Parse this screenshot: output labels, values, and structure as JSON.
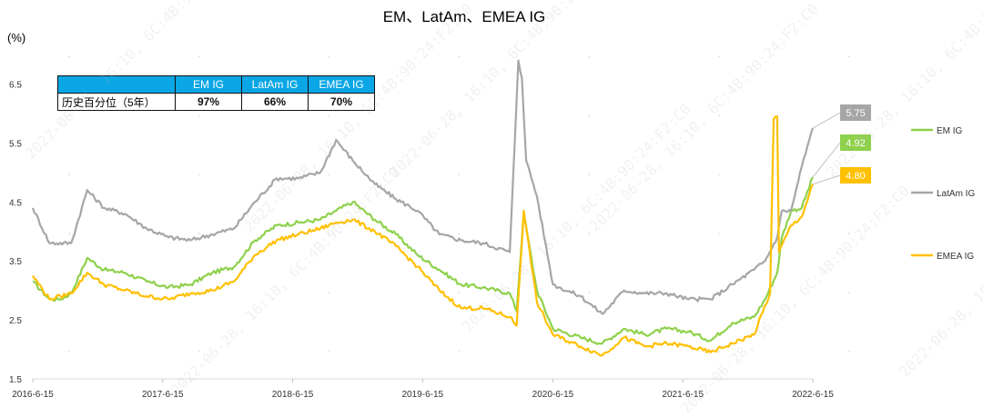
{
  "chart_data": {
    "type": "line",
    "title": "EM、LatAm、EMEA IG",
    "ylabel": "(%)",
    "ylim": [
      1.5,
      7.0
    ],
    "yticks": [
      1.5,
      2.5,
      3.5,
      4.5,
      5.5,
      6.5
    ],
    "xlim": [
      "2016-06-15",
      "2022-06-15"
    ],
    "xticks": [
      "2016-6-15",
      "2017-6-15",
      "2018-6-15",
      "2019-6-15",
      "2020-6-15",
      "2021-6-15",
      "2022-6-15"
    ],
    "grid": "dotted",
    "legend": "right",
    "series": [
      {
        "name": "EM IG",
        "color": "#8ed14b",
        "end_label": "4.92",
        "x": [
          "2016-06-15",
          "2016-08-01",
          "2016-09-01",
          "2016-10-01",
          "2016-11-15",
          "2017-01-01",
          "2017-03-01",
          "2017-05-01",
          "2017-07-01",
          "2017-09-01",
          "2017-11-01",
          "2018-01-01",
          "2018-03-01",
          "2018-05-01",
          "2018-07-01",
          "2018-09-01",
          "2018-10-15",
          "2018-12-01",
          "2019-02-01",
          "2019-04-01",
          "2019-06-01",
          "2019-08-01",
          "2019-10-01",
          "2019-12-01",
          "2020-02-15",
          "2020-03-05",
          "2020-03-25",
          "2020-05-01",
          "2020-06-15",
          "2020-09-01",
          "2020-11-01",
          "2021-01-01",
          "2021-03-01",
          "2021-05-01",
          "2021-07-01",
          "2021-09-01",
          "2021-11-01",
          "2022-01-01",
          "2022-02-01",
          "2022-03-07",
          "2022-03-20",
          "2022-04-15",
          "2022-05-15",
          "2022-06-15"
        ],
        "y": [
          3.15,
          2.85,
          2.85,
          2.95,
          3.55,
          3.35,
          3.3,
          3.15,
          3.05,
          3.1,
          3.3,
          3.4,
          3.85,
          4.1,
          4.15,
          4.2,
          4.35,
          4.5,
          4.2,
          3.95,
          3.6,
          3.35,
          3.1,
          3.05,
          2.95,
          2.65,
          4.3,
          3.0,
          2.35,
          2.2,
          2.1,
          2.35,
          2.25,
          2.35,
          2.3,
          2.15,
          2.45,
          2.55,
          2.85,
          3.3,
          3.9,
          4.35,
          4.4,
          4.92
        ]
      },
      {
        "name": "LatAm IG",
        "color": "#a6a6a6",
        "end_label": "5.75",
        "x": [
          "2016-06-15",
          "2016-08-01",
          "2016-10-01",
          "2016-11-15",
          "2017-01-01",
          "2017-03-01",
          "2017-05-01",
          "2017-07-01",
          "2017-09-01",
          "2017-11-01",
          "2018-01-01",
          "2018-03-01",
          "2018-05-01",
          "2018-07-01",
          "2018-09-01",
          "2018-10-15",
          "2018-12-01",
          "2019-02-01",
          "2019-04-01",
          "2019-06-01",
          "2019-08-01",
          "2019-10-01",
          "2019-12-01",
          "2020-02-15",
          "2020-03-10",
          "2020-03-20",
          "2020-04-01",
          "2020-05-01",
          "2020-06-15",
          "2020-09-01",
          "2020-11-01",
          "2021-01-01",
          "2021-03-01",
          "2021-05-01",
          "2021-07-01",
          "2021-09-01",
          "2021-11-01",
          "2022-01-01",
          "2022-02-01",
          "2022-03-07",
          "2022-03-20",
          "2022-04-15",
          "2022-05-15",
          "2022-06-15"
        ],
        "y": [
          4.4,
          3.8,
          3.8,
          4.7,
          4.4,
          4.3,
          4.05,
          3.9,
          3.85,
          3.95,
          4.05,
          4.5,
          4.9,
          4.9,
          5.0,
          5.55,
          5.2,
          4.8,
          4.55,
          4.35,
          3.95,
          3.85,
          3.8,
          3.65,
          6.9,
          6.6,
          5.2,
          4.6,
          3.1,
          2.9,
          2.6,
          3.0,
          2.95,
          2.95,
          2.85,
          2.85,
          3.1,
          3.35,
          3.5,
          3.9,
          4.35,
          4.35,
          5.1,
          5.75
        ]
      },
      {
        "name": "EMEA IG",
        "color": "#ffc000",
        "end_label": "4.80",
        "x": [
          "2016-06-15",
          "2016-08-01",
          "2016-09-01",
          "2016-10-01",
          "2016-11-15",
          "2017-01-01",
          "2017-03-01",
          "2017-05-01",
          "2017-07-01",
          "2017-09-01",
          "2017-11-01",
          "2018-01-01",
          "2018-03-01",
          "2018-05-01",
          "2018-07-01",
          "2018-09-01",
          "2018-10-15",
          "2018-12-01",
          "2019-02-01",
          "2019-04-01",
          "2019-06-01",
          "2019-08-01",
          "2019-10-01",
          "2019-12-01",
          "2020-02-15",
          "2020-03-05",
          "2020-03-25",
          "2020-05-01",
          "2020-06-15",
          "2020-09-01",
          "2020-11-01",
          "2021-01-01",
          "2021-03-01",
          "2021-05-01",
          "2021-07-01",
          "2021-09-01",
          "2021-11-01",
          "2022-01-01",
          "2022-02-15",
          "2022-02-25",
          "2022-03-07",
          "2022-03-12",
          "2022-04-15",
          "2022-05-15",
          "2022-06-15"
        ],
        "y": [
          3.25,
          2.85,
          2.9,
          2.95,
          3.3,
          3.1,
          3.0,
          2.9,
          2.85,
          2.95,
          3.0,
          3.15,
          3.6,
          3.85,
          3.95,
          4.05,
          4.15,
          4.2,
          4.0,
          3.75,
          3.4,
          3.0,
          2.7,
          2.7,
          2.55,
          2.4,
          4.35,
          2.8,
          2.25,
          2.05,
          1.9,
          2.2,
          2.05,
          2.1,
          2.05,
          1.95,
          2.1,
          2.25,
          2.95,
          5.9,
          5.95,
          3.65,
          4.1,
          4.25,
          4.8
        ]
      }
    ]
  },
  "table": {
    "headers": [
      "",
      "EM IG",
      "LatAm IG",
      "EMEA IG"
    ],
    "row_label": "历史百分位（5年）",
    "values": [
      "97%",
      "66%",
      "70%"
    ]
  },
  "watermark": "2022-06-28, 16:10, 6C:4B:90:24:F2:C0"
}
